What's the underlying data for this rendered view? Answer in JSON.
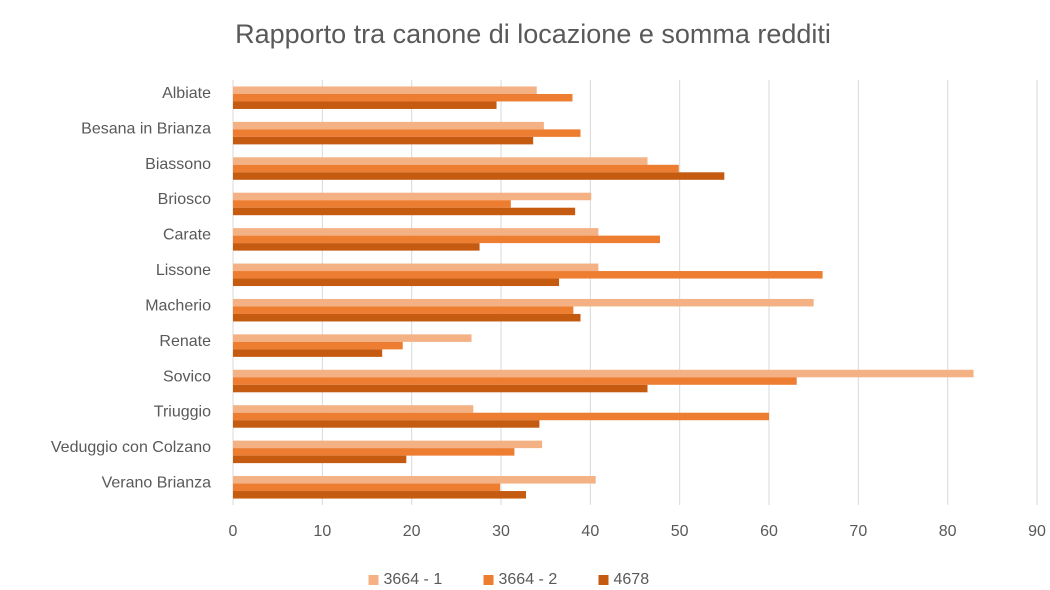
{
  "chart_data": {
    "type": "hbar",
    "title": "Rapporto tra canone di locazione e somma redditi",
    "categories": [
      "Albiate",
      "Besana in Brianza",
      "Biassono",
      "Briosco",
      "Carate",
      "Lissone",
      "Macherio",
      "Renate",
      "Sovico",
      "Triuggio",
      "Veduggio con Colzano",
      "Verano Brianza"
    ],
    "series": [
      {
        "name": "3664 - 1",
        "color": "#f4b183",
        "values": [
          34,
          34.8,
          46.4,
          40.1,
          40.9,
          40.9,
          65,
          26.7,
          82.9,
          26.9,
          34.6,
          40.6
        ]
      },
      {
        "name": "3664 - 2",
        "color": "#ed7d31",
        "values": [
          38,
          38.9,
          49.9,
          31.1,
          47.8,
          66,
          38.1,
          19,
          63.1,
          60,
          31.5,
          29.9
        ]
      },
      {
        "name": "4678",
        "color": "#c55a11",
        "values": [
          29.5,
          33.6,
          55,
          38.3,
          27.6,
          36.5,
          38.9,
          16.7,
          46.4,
          34.3,
          19.4,
          32.8
        ]
      }
    ],
    "xlim": [
      0,
      90
    ],
    "xticks": [
      0,
      10,
      20,
      30,
      40,
      50,
      60,
      70,
      80,
      90
    ],
    "grid": true,
    "legend": "bottom"
  }
}
